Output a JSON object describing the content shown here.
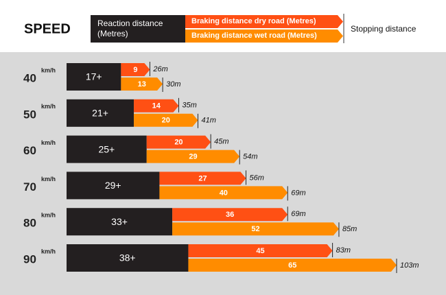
{
  "chart_data": {
    "type": "bar",
    "title": "SPEED",
    "categories": [
      "40",
      "50",
      "60",
      "70",
      "80",
      "90"
    ],
    "unit": "km/h",
    "series": [
      {
        "name": "Reaction distance (Metres)",
        "color": "#231f20",
        "values": [
          17,
          21,
          25,
          29,
          33,
          38
        ],
        "value_labels": [
          "17+",
          "21+",
          "25+",
          "29+",
          "33+",
          "38+"
        ]
      },
      {
        "name": "Braking distance dry road (Metres)",
        "color": "#ff5014",
        "values": [
          9,
          14,
          20,
          27,
          36,
          45
        ]
      },
      {
        "name": "Braking distance wet road (Metres)",
        "color": "#ff8c00",
        "values": [
          13,
          20,
          29,
          40,
          52,
          65
        ]
      }
    ],
    "stopping_distance": {
      "name": "Stopping distance",
      "dry_values": [
        26,
        35,
        45,
        56,
        69,
        83
      ],
      "dry_value_labels": [
        "26m",
        "35m",
        "45m",
        "56m",
        "69m",
        "83m"
      ],
      "wet_values": [
        30,
        41,
        54,
        69,
        85,
        103
      ],
      "wet_value_labels": [
        "30m",
        "41m",
        "54m",
        "69m",
        "85m",
        "103m"
      ]
    }
  }
}
